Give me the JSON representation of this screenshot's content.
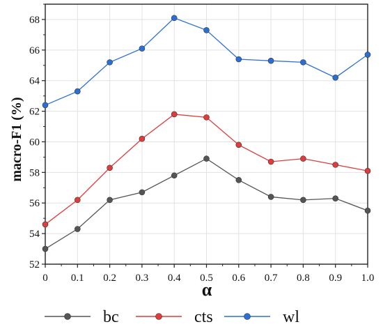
{
  "chart_data": {
    "type": "line",
    "xlabel": "α",
    "ylabel": "macro-F1 (%)",
    "x": [
      0,
      0.1,
      0.2,
      0.3,
      0.4,
      0.5,
      0.6,
      0.7,
      0.8,
      0.9,
      1.0
    ],
    "x_tick_labels": [
      "0",
      "0.1",
      "0.2",
      "0.3",
      "0.4",
      "0.5",
      "0.6",
      "0.7",
      "0.8",
      "0.9",
      "1.0"
    ],
    "y_ticks": [
      52,
      54,
      56,
      58,
      60,
      62,
      64,
      66,
      68
    ],
    "xlim": [
      0,
      1.0
    ],
    "ylim": [
      52,
      69
    ],
    "grid": true,
    "legend_position": "bottom",
    "series": [
      {
        "name": "bc",
        "color": "#555555",
        "values": [
          53.0,
          54.3,
          56.2,
          56.7,
          57.8,
          58.9,
          57.5,
          56.4,
          56.2,
          56.3,
          55.5
        ]
      },
      {
        "name": "cts",
        "color": "#e03c3c",
        "values": [
          54.6,
          56.2,
          58.3,
          60.2,
          61.8,
          61.6,
          59.8,
          58.7,
          58.9,
          58.5,
          58.1
        ]
      },
      {
        "name": "wl",
        "color": "#2b6fd6",
        "values": [
          62.4,
          63.3,
          65.2,
          66.1,
          68.1,
          67.3,
          65.4,
          65.3,
          65.2,
          64.2,
          65.7
        ]
      }
    ]
  }
}
